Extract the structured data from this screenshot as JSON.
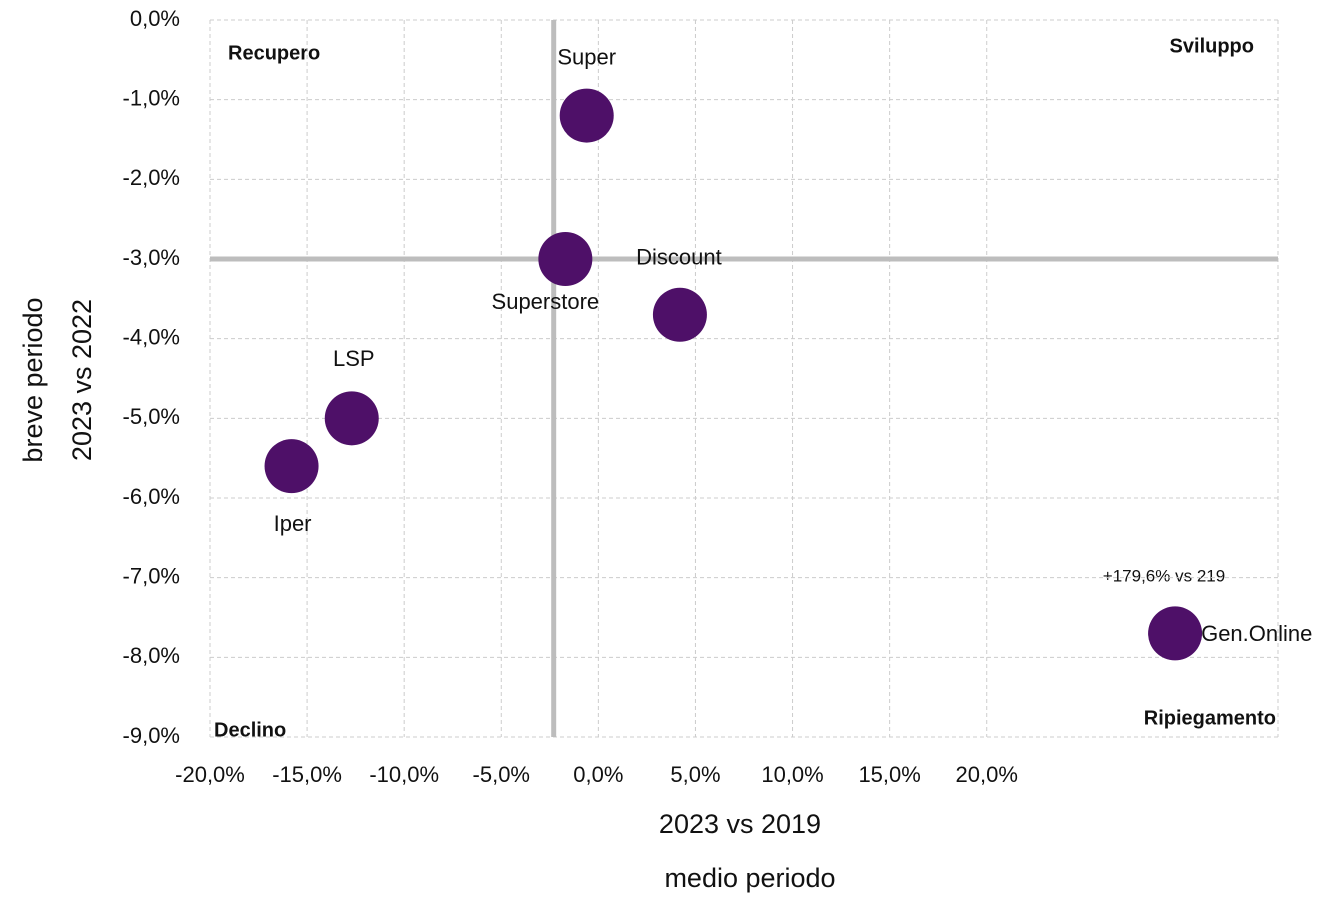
{
  "chart_data": {
    "type": "scatter",
    "x_label": "2023 vs 2019",
    "x_label_2": "medio periodo",
    "y_label": "breve periodo",
    "y_label_2": "2023 vs 2022",
    "annotation": "+179,6% vs 219",
    "quadrants": {
      "top_left": "Recupero",
      "top_right": "Sviluppo",
      "bottom_left": "Declino",
      "bottom_right": "Ripiegamento"
    },
    "labels": [
      "Super",
      "Superstore",
      "Discount",
      "LSP",
      "Iper",
      "Gen.Online"
    ],
    "x": [
      -0.6,
      -1.7,
      4.2,
      -12.7,
      -15.8,
      29.7
    ],
    "y": [
      -1.2,
      -3.0,
      -3.7,
      -5.0,
      -5.6,
      -7.7
    ],
    "color": "#4e1068",
    "reference_lines": {
      "x": -2.3,
      "y": -3.0
    },
    "xlim": [
      -20,
      35
    ],
    "ylim": [
      -9,
      0
    ],
    "xticks": [
      {
        "value": -20,
        "label": "-20,0%"
      },
      {
        "value": -15,
        "label": "-15,0%"
      },
      {
        "value": -10,
        "label": "-10,0%"
      },
      {
        "value": -5,
        "label": "-5,0%"
      },
      {
        "value": 0,
        "label": "0,0%"
      },
      {
        "value": 5,
        "label": "5,0%"
      },
      {
        "value": 10,
        "label": "10,0%"
      },
      {
        "value": 15,
        "label": "15,0%"
      },
      {
        "value": 20,
        "label": "20,0%"
      }
    ],
    "yticks": [
      {
        "value": 0,
        "label": "0,0%"
      },
      {
        "value": -1,
        "label": "-1,0%"
      },
      {
        "value": -2,
        "label": "-2,0%"
      },
      {
        "value": -3,
        "label": "-3,0%"
      },
      {
        "value": -4,
        "label": "-4,0%"
      },
      {
        "value": -5,
        "label": "-5,0%"
      },
      {
        "value": -6,
        "label": "-6,0%"
      },
      {
        "value": -7,
        "label": "-7,0%"
      },
      {
        "value": -8,
        "label": "-8,0%"
      },
      {
        "value": -9,
        "label": "-9,0%"
      }
    ],
    "grid": true
  }
}
